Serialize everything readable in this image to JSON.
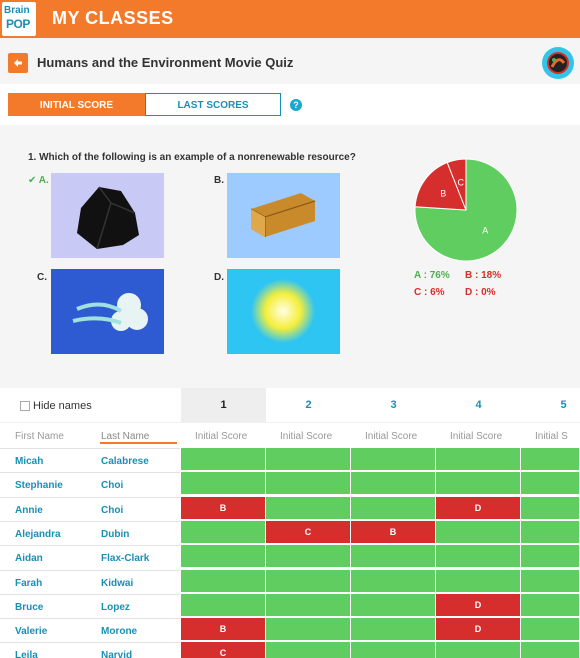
{
  "header": {
    "logo_line1": "Brain",
    "logo_line2": "POP",
    "title": "MY CLASSES"
  },
  "quiz": {
    "title": "Humans and the Environment Movie Quiz"
  },
  "tabs": {
    "initial": "INITIAL SCORE",
    "last": "LAST SCORES",
    "help": "?"
  },
  "question": {
    "text": "1. Which of the following is an example of a nonrenewable resource?",
    "options": [
      {
        "label": "✔ A.",
        "icon": "coal-icon",
        "bg": "#c9c9f5",
        "correct": true
      },
      {
        "label": "B.",
        "icon": "wood-log-icon",
        "bg": "#9ecbff",
        "correct": false
      },
      {
        "label": "C.",
        "icon": "wind-icon",
        "bg": "#2e5bd1",
        "correct": false
      },
      {
        "label": "D.",
        "icon": "sun-icon",
        "bg": "#2fc5f2",
        "correct": false
      }
    ]
  },
  "chart_data": {
    "type": "pie",
    "slices": [
      {
        "label": "A",
        "value": 76,
        "color": "#60cd60"
      },
      {
        "label": "B",
        "value": 18,
        "color": "#d62d2d"
      },
      {
        "label": "C",
        "value": 6,
        "color": "#d62d2d"
      },
      {
        "label": "D",
        "value": 0,
        "color": "#d62d2d"
      }
    ],
    "legend": [
      {
        "text": "A : 76%",
        "color": "#4fae4f"
      },
      {
        "text": "B : 18%",
        "color": "#d62d2d"
      },
      {
        "text": "C : 6%",
        "color": "#d62d2d"
      },
      {
        "text": "D : 0%",
        "color": "#d62d2d"
      }
    ]
  },
  "table": {
    "hide_names_label": "Hide names",
    "question_numbers": [
      "1",
      "2",
      "3",
      "4",
      "5"
    ],
    "first_name_header": "First Name",
    "last_name_header": "Last Name",
    "score_header": "Initial Score",
    "score_header_truncated": "Initial S",
    "rows": [
      {
        "first": "Micah",
        "last": "Calabrese",
        "answers": [
          "",
          "",
          "",
          "",
          ""
        ]
      },
      {
        "first": "Stephanie",
        "last": "Choi",
        "answers": [
          "",
          "",
          "",
          "",
          ""
        ]
      },
      {
        "first": "Annie",
        "last": "Choi",
        "answers": [
          "B",
          "",
          "",
          "D",
          ""
        ]
      },
      {
        "first": "Alejandra",
        "last": "Dubin",
        "answers": [
          "",
          "C",
          "B",
          "",
          ""
        ]
      },
      {
        "first": "Aidan",
        "last": "Flax-Clark",
        "answers": [
          "",
          "",
          "",
          "",
          ""
        ]
      },
      {
        "first": "Farah",
        "last": "Kidwai",
        "answers": [
          "",
          "",
          "",
          "",
          ""
        ]
      },
      {
        "first": "Bruce",
        "last": "Lopez",
        "answers": [
          "",
          "",
          "",
          "D",
          ""
        ]
      },
      {
        "first": "Valerie",
        "last": "Morone",
        "answers": [
          "B",
          "",
          "",
          "D",
          ""
        ]
      },
      {
        "first": "Leila",
        "last": "Narvid",
        "answers": [
          "C",
          "",
          "",
          "",
          ""
        ]
      }
    ]
  }
}
